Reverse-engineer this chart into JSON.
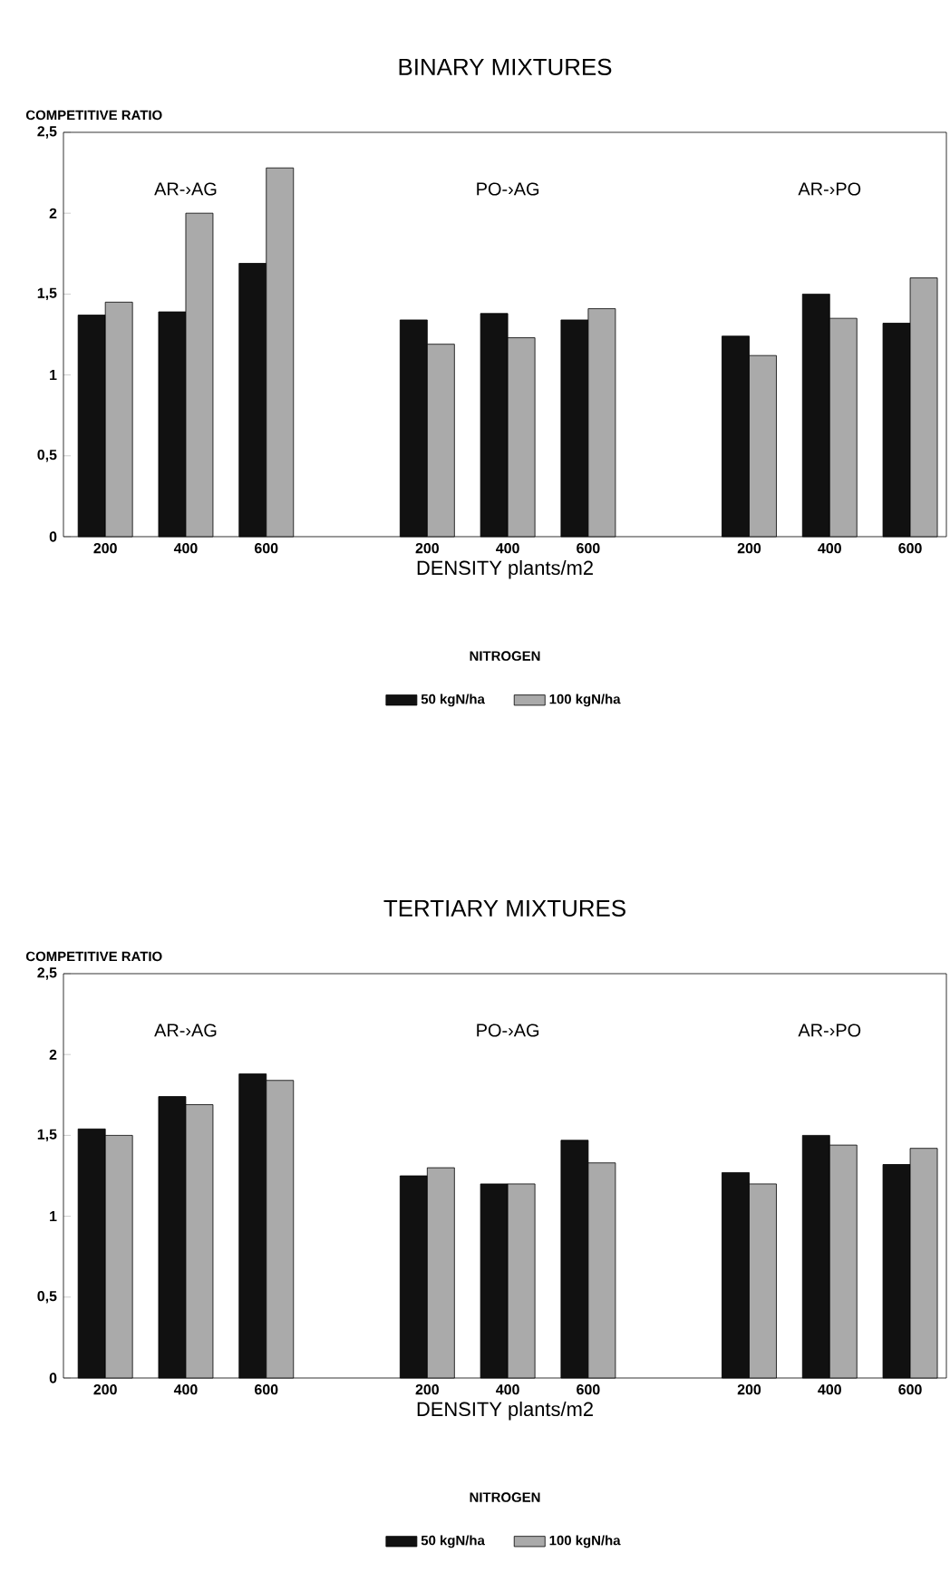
{
  "chart_data": [
    {
      "type": "bar",
      "title": "BINARY MIXTURES",
      "ylabel": "COMPETITIVE RATIO",
      "xlabel": "DENSITY plants/m2",
      "legend_title": "NITROGEN",
      "legend": "bottom",
      "categories": [
        "200",
        "400",
        "600",
        null,
        "200",
        "400",
        "600",
        null,
        "200",
        "400",
        "600"
      ],
      "series": [
        {
          "name": "50 kgN/ha",
          "color": "#111111",
          "values": [
            1.37,
            1.39,
            1.69,
            null,
            1.34,
            1.38,
            1.34,
            null,
            1.24,
            1.5,
            1.32
          ]
        },
        {
          "name": "100 kgN/ha",
          "color": "#aaaaaa",
          "values": [
            1.45,
            2.0,
            2.28,
            null,
            1.19,
            1.23,
            1.41,
            null,
            1.12,
            1.35,
            1.6
          ]
        }
      ],
      "ylim": [
        0,
        2.5
      ],
      "yticks": [
        0,
        {
          "value": 0.5,
          "label": "0,5"
        },
        1,
        {
          "value": 1.5,
          "label": "1,5"
        },
        2,
        {
          "value": 2.5,
          "label": "2,5"
        }
      ],
      "annotations": [
        "AR-›AG",
        "PO-›AG",
        "AR-›PO"
      ]
    },
    {
      "type": "bar",
      "title": "TERTIARY MIXTURES",
      "ylabel": "COMPETITIVE RATIO",
      "xlabel": "DENSITY plants/m2",
      "legend_title": "NITROGEN",
      "legend": "bottom",
      "categories": [
        "200",
        "400",
        "600",
        null,
        "200",
        "400",
        "600",
        null,
        "200",
        "400",
        "600"
      ],
      "series": [
        {
          "name": "50 kgN/ha",
          "color": "#111111",
          "values": [
            1.54,
            1.74,
            1.88,
            null,
            1.25,
            1.2,
            1.47,
            null,
            1.27,
            1.5,
            1.32
          ]
        },
        {
          "name": "100 kgN/ha",
          "color": "#aaaaaa",
          "values": [
            1.5,
            1.69,
            1.84,
            null,
            1.3,
            1.2,
            1.33,
            null,
            1.2,
            1.44,
            1.42
          ]
        }
      ],
      "ylim": [
        0,
        2.5
      ],
      "yticks": [
        0,
        {
          "value": 0.5,
          "label": "0,5"
        },
        1,
        {
          "value": 1.5,
          "label": "1,5"
        },
        2,
        {
          "value": 2.5,
          "label": "2,5"
        }
      ],
      "annotations": [
        "AR-›AG",
        "PO-›AG",
        "AR-›PO"
      ]
    }
  ]
}
